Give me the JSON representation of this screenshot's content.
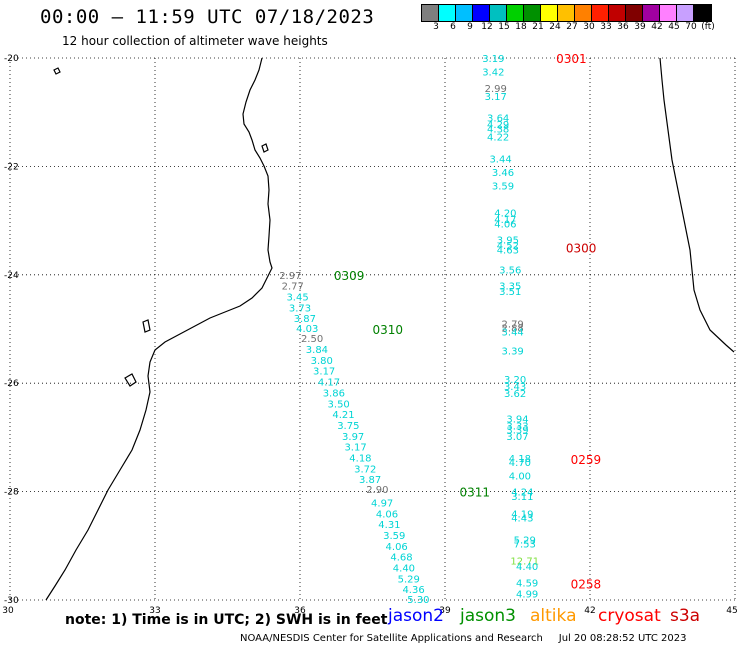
{
  "header": {
    "title": "00:00 – 11:59 UTC 07/18/2023",
    "subtitle": "12 hour collection of altimeter wave heights"
  },
  "colorbar": {
    "colors": [
      "#7f7f7f",
      "#00ffff",
      "#00bfff",
      "#0000ff",
      "#00c0c0",
      "#00d000",
      "#009000",
      "#ffff00",
      "#ffc000",
      "#ff8000",
      "#ff2000",
      "#c00000",
      "#800000",
      "#a000a0",
      "#ff80ff",
      "#c8a0ff",
      "#000000"
    ],
    "labels": [
      "3",
      "6",
      "9",
      "12",
      "15",
      "18",
      "21",
      "24",
      "27",
      "30",
      "33",
      "36",
      "39",
      "42",
      "45",
      "70",
      "(ft)"
    ]
  },
  "map": {
    "lon_range": [
      30,
      45
    ],
    "lat_range": [
      -20,
      -30
    ],
    "lon_ticks": [
      "30",
      "33",
      "36",
      "39",
      "42",
      "45"
    ],
    "lat_ticks": [
      "-20",
      "-22",
      "-24",
      "-26",
      "-28",
      "-30"
    ],
    "pass_labels": [
      {
        "text": "0301",
        "color": "#ff0000",
        "lon": 41.3,
        "lat": -20.0
      },
      {
        "text": "0300",
        "color": "#cc0000",
        "lon": 41.5,
        "lat": -23.5
      },
      {
        "text": "0309",
        "color": "#008000",
        "lon": 36.7,
        "lat": -24.0
      },
      {
        "text": "0310",
        "color": "#008000",
        "lon": 37.5,
        "lat": -25.0
      },
      {
        "text": "0311",
        "color": "#008000",
        "lon": 39.3,
        "lat": -28.0
      },
      {
        "text": "0259",
        "color": "#ff0000",
        "lon": 41.6,
        "lat": -27.4
      },
      {
        "text": "0258",
        "color": "#ff0000",
        "lon": 41.6,
        "lat": -29.7
      }
    ],
    "obs_colors": {
      "cyan": "#00d4d4",
      "gray": "#707070",
      "green": "#80e040"
    },
    "observations": [
      {
        "v": "3.19",
        "c": "cyan",
        "lon": 40.0,
        "lat": -20.0
      },
      {
        "v": "3.42",
        "c": "cyan",
        "lon": 40.0,
        "lat": -20.25
      },
      {
        "v": "2.99",
        "c": "gray",
        "lon": 40.05,
        "lat": -20.55
      },
      {
        "v": "3.17",
        "c": "cyan",
        "lon": 40.05,
        "lat": -20.7
      },
      {
        "v": "3.64",
        "c": "cyan",
        "lon": 40.1,
        "lat": -21.1
      },
      {
        "v": "4.29",
        "c": "cyan",
        "lon": 40.1,
        "lat": -21.22
      },
      {
        "v": "4.38",
        "c": "cyan",
        "lon": 40.1,
        "lat": -21.3
      },
      {
        "v": "4.22",
        "c": "cyan",
        "lon": 40.1,
        "lat": -21.45
      },
      {
        "v": "3.44",
        "c": "cyan",
        "lon": 40.15,
        "lat": -21.85
      },
      {
        "v": "3.46",
        "c": "cyan",
        "lon": 40.2,
        "lat": -22.1
      },
      {
        "v": "3.59",
        "c": "cyan",
        "lon": 40.2,
        "lat": -22.35
      },
      {
        "v": "4.20",
        "c": "cyan",
        "lon": 40.25,
        "lat": -22.85
      },
      {
        "v": "4.17",
        "c": "cyan",
        "lon": 40.25,
        "lat": -22.97
      },
      {
        "v": "4.06",
        "c": "cyan",
        "lon": 40.25,
        "lat": -23.05
      },
      {
        "v": "3.95",
        "c": "cyan",
        "lon": 40.3,
        "lat": -23.35
      },
      {
        "v": "4.52",
        "c": "cyan",
        "lon": 40.3,
        "lat": -23.45
      },
      {
        "v": "4.63",
        "c": "cyan",
        "lon": 40.3,
        "lat": -23.53
      },
      {
        "v": "3.56",
        "c": "cyan",
        "lon": 40.35,
        "lat": -23.9
      },
      {
        "v": "3.35",
        "c": "cyan",
        "lon": 40.35,
        "lat": -24.2
      },
      {
        "v": "3.51",
        "c": "cyan",
        "lon": 40.35,
        "lat": -24.3
      },
      {
        "v": "2.79",
        "c": "gray",
        "lon": 40.4,
        "lat": -24.9
      },
      {
        "v": "2.88",
        "c": "gray",
        "lon": 40.4,
        "lat": -24.97
      },
      {
        "v": "3.44",
        "c": "cyan",
        "lon": 40.4,
        "lat": -25.05
      },
      {
        "v": "3.39",
        "c": "cyan",
        "lon": 40.4,
        "lat": -25.4
      },
      {
        "v": "3.20",
        "c": "cyan",
        "lon": 40.45,
        "lat": -25.92
      },
      {
        "v": "3.43",
        "c": "cyan",
        "lon": 40.45,
        "lat": -26.05
      },
      {
        "v": "3.62",
        "c": "cyan",
        "lon": 40.45,
        "lat": -26.18
      },
      {
        "v": "3.94",
        "c": "cyan",
        "lon": 40.5,
        "lat": -26.65
      },
      {
        "v": "3.33",
        "c": "cyan",
        "lon": 40.5,
        "lat": -26.78
      },
      {
        "v": "3.39",
        "c": "cyan",
        "lon": 40.5,
        "lat": -26.85
      },
      {
        "v": "3.07",
        "c": "cyan",
        "lon": 40.5,
        "lat": -26.97
      },
      {
        "v": "4.18",
        "c": "cyan",
        "lon": 40.55,
        "lat": -27.38
      },
      {
        "v": "4.70",
        "c": "cyan",
        "lon": 40.55,
        "lat": -27.45
      },
      {
        "v": "4.00",
        "c": "cyan",
        "lon": 40.55,
        "lat": -27.7
      },
      {
        "v": "4.24",
        "c": "cyan",
        "lon": 40.6,
        "lat": -28.0
      },
      {
        "v": "3.11",
        "c": "cyan",
        "lon": 40.6,
        "lat": -28.08
      },
      {
        "v": "4.19",
        "c": "cyan",
        "lon": 40.6,
        "lat": -28.4
      },
      {
        "v": "4.43",
        "c": "cyan",
        "lon": 40.6,
        "lat": -28.48
      },
      {
        "v": "5.29",
        "c": "cyan",
        "lon": 40.65,
        "lat": -28.88
      },
      {
        "v": "7.53",
        "c": "cyan",
        "lon": 40.65,
        "lat": -28.96
      },
      {
        "v": "12.71",
        "c": "green",
        "lon": 40.65,
        "lat": -29.27
      },
      {
        "v": "4.40",
        "c": "cyan",
        "lon": 40.7,
        "lat": -29.37
      },
      {
        "v": "4.59",
        "c": "cyan",
        "lon": 40.7,
        "lat": -29.68
      },
      {
        "v": "4.99",
        "c": "cyan",
        "lon": 40.7,
        "lat": -29.88
      },
      {
        "v": "2.97",
        "c": "gray",
        "lon": 35.8,
        "lat": -24.0
      },
      {
        "v": "2.77",
        "c": "gray",
        "lon": 35.85,
        "lat": -24.2
      },
      {
        "v": "3.45",
        "c": "cyan",
        "lon": 35.95,
        "lat": -24.4
      },
      {
        "v": "3.73",
        "c": "cyan",
        "lon": 36.0,
        "lat": -24.6
      },
      {
        "v": "3.87",
        "c": "cyan",
        "lon": 36.1,
        "lat": -24.8
      },
      {
        "v": "4.03",
        "c": "cyan",
        "lon": 36.15,
        "lat": -24.98
      },
      {
        "v": "2.50",
        "c": "gray",
        "lon": 36.25,
        "lat": -25.17
      },
      {
        "v": "3.84",
        "c": "cyan",
        "lon": 36.35,
        "lat": -25.37
      },
      {
        "v": "3.80",
        "c": "cyan",
        "lon": 36.45,
        "lat": -25.57
      },
      {
        "v": "3.17",
        "c": "cyan",
        "lon": 36.5,
        "lat": -25.77
      },
      {
        "v": "4.17",
        "c": "cyan",
        "lon": 36.6,
        "lat": -25.97
      },
      {
        "v": "3.86",
        "c": "cyan",
        "lon": 36.7,
        "lat": -26.17
      },
      {
        "v": "3.50",
        "c": "cyan",
        "lon": 36.8,
        "lat": -26.37
      },
      {
        "v": "4.21",
        "c": "cyan",
        "lon": 36.9,
        "lat": -26.57
      },
      {
        "v": "3.75",
        "c": "cyan",
        "lon": 37.0,
        "lat": -26.77
      },
      {
        "v": "3.97",
        "c": "cyan",
        "lon": 37.1,
        "lat": -26.97
      },
      {
        "v": "3.17",
        "c": "cyan",
        "lon": 37.15,
        "lat": -27.17
      },
      {
        "v": "4.18",
        "c": "cyan",
        "lon": 37.25,
        "lat": -27.37
      },
      {
        "v": "3.72",
        "c": "cyan",
        "lon": 37.35,
        "lat": -27.57
      },
      {
        "v": "3.87",
        "c": "cyan",
        "lon": 37.45,
        "lat": -27.77
      },
      {
        "v": "2.90",
        "c": "gray",
        "lon": 37.6,
        "lat": -27.95
      },
      {
        "v": "4.97",
        "c": "cyan",
        "lon": 37.7,
        "lat": -28.2
      },
      {
        "v": "4.06",
        "c": "cyan",
        "lon": 37.8,
        "lat": -28.4
      },
      {
        "v": "4.31",
        "c": "cyan",
        "lon": 37.85,
        "lat": -28.6
      },
      {
        "v": "3.59",
        "c": "cyan",
        "lon": 37.95,
        "lat": -28.8
      },
      {
        "v": "4.06",
        "c": "cyan",
        "lon": 38.0,
        "lat": -29.0
      },
      {
        "v": "4.68",
        "c": "cyan",
        "lon": 38.1,
        "lat": -29.2
      },
      {
        "v": "4.40",
        "c": "cyan",
        "lon": 38.15,
        "lat": -29.4
      },
      {
        "v": "5.29",
        "c": "cyan",
        "lon": 38.25,
        "lat": -29.6
      },
      {
        "v": "4.36",
        "c": "cyan",
        "lon": 38.35,
        "lat": -29.8
      },
      {
        "v": "5.30",
        "c": "cyan",
        "lon": 38.45,
        "lat": -29.98
      }
    ]
  },
  "footer": {
    "note": "note: 1) Time is in UTC; 2) SWH is in feet",
    "satellites": [
      {
        "name": "jason2",
        "color": "#0000ff"
      },
      {
        "name": "jason3",
        "color": "#009000"
      },
      {
        "name": "altika",
        "color": "#ff9900"
      },
      {
        "name": "cryosat",
        "color": "#ff0000"
      },
      {
        "name": "s3a",
        "color": "#cc0000"
      }
    ],
    "credit": "NOAA/NESDIS Center for Satellite Applications and Research     Jul 20 08:28:52 UTC 2023"
  }
}
